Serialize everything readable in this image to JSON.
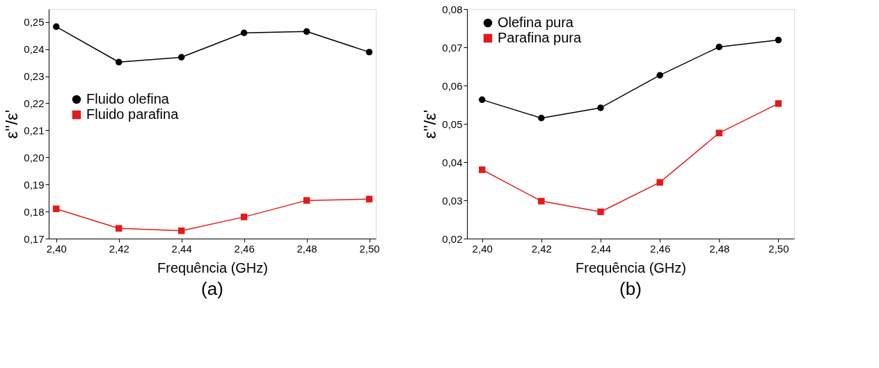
{
  "chart_data": [
    {
      "type": "line",
      "title": "(a)",
      "xlabel": "Frequência (GHz)",
      "ylabel": "ε''/ε'",
      "x": [
        2.4,
        2.42,
        2.44,
        2.46,
        2.48,
        2.5
      ],
      "series": [
        {
          "name": "Fluido olefina",
          "color": "#000000",
          "marker": "circle",
          "values": [
            0.2483,
            0.2352,
            0.237,
            0.246,
            0.2465,
            0.2389
          ]
        },
        {
          "name": "Fluido parafina",
          "color": "#e31a1c",
          "marker": "square",
          "values": [
            0.181,
            0.1738,
            0.1729,
            0.178,
            0.1841,
            0.1846
          ]
        }
      ],
      "xlim": [
        2.3976,
        2.5021
      ],
      "ylim": [
        0.17,
        0.2548
      ],
      "xticks": [
        {
          "value": 2.4,
          "label": "2,40"
        },
        {
          "value": 2.42,
          "label": "2,42"
        },
        {
          "value": 2.44,
          "label": "2,44"
        },
        {
          "value": 2.46,
          "label": "2,46"
        },
        {
          "value": 2.48,
          "label": "2,48"
        },
        {
          "value": 2.5,
          "label": "2,50"
        }
      ],
      "yticks": [
        {
          "value": 0.17,
          "label": "0,17"
        },
        {
          "value": 0.18,
          "label": "0,18"
        },
        {
          "value": 0.19,
          "label": "0,19"
        },
        {
          "value": 0.2,
          "label": "0,20"
        },
        {
          "value": 0.21,
          "label": "0,21"
        },
        {
          "value": 0.22,
          "label": "0,22"
        },
        {
          "value": 0.23,
          "label": "0,23"
        },
        {
          "value": 0.24,
          "label": "0,24"
        },
        {
          "value": 0.25,
          "label": "0,25"
        }
      ],
      "grid": false,
      "legend": "left",
      "line_style": "solid"
    },
    {
      "type": "line",
      "title": "(b)",
      "xlabel": "Frequência (GHz)",
      "ylabel": "ε''/ε'",
      "x": [
        2.4,
        2.42,
        2.44,
        2.46,
        2.48,
        2.5
      ],
      "series": [
        {
          "name": "Olefina pura",
          "color": "#000000",
          "marker": "circle",
          "values": [
            0.0563,
            0.0515,
            0.0542,
            0.0627,
            0.0701,
            0.0719
          ]
        },
        {
          "name": "Parafina pura",
          "color": "#e31a1c",
          "marker": "square",
          "values": [
            0.038,
            0.0298,
            0.027,
            0.0347,
            0.0476,
            0.0553
          ]
        }
      ],
      "xlim": [
        2.3949,
        2.5053
      ],
      "ylim": [
        0.02,
        0.08
      ],
      "xticks": [
        {
          "value": 2.4,
          "label": "2,40"
        },
        {
          "value": 2.42,
          "label": "2,42"
        },
        {
          "value": 2.44,
          "label": "2,44"
        },
        {
          "value": 2.46,
          "label": "2,46"
        },
        {
          "value": 2.48,
          "label": "2,48"
        },
        {
          "value": 2.5,
          "label": "2,50"
        }
      ],
      "yticks": [
        {
          "value": 0.02,
          "label": "0,02"
        },
        {
          "value": 0.03,
          "label": "0,03"
        },
        {
          "value": 0.04,
          "label": "0,04"
        },
        {
          "value": 0.05,
          "label": "0,05"
        },
        {
          "value": 0.06,
          "label": "0,06"
        },
        {
          "value": 0.07,
          "label": "0,07"
        },
        {
          "value": 0.08,
          "label": "0,08"
        }
      ],
      "grid": false,
      "legend": "top left",
      "line_style": "solid"
    }
  ]
}
